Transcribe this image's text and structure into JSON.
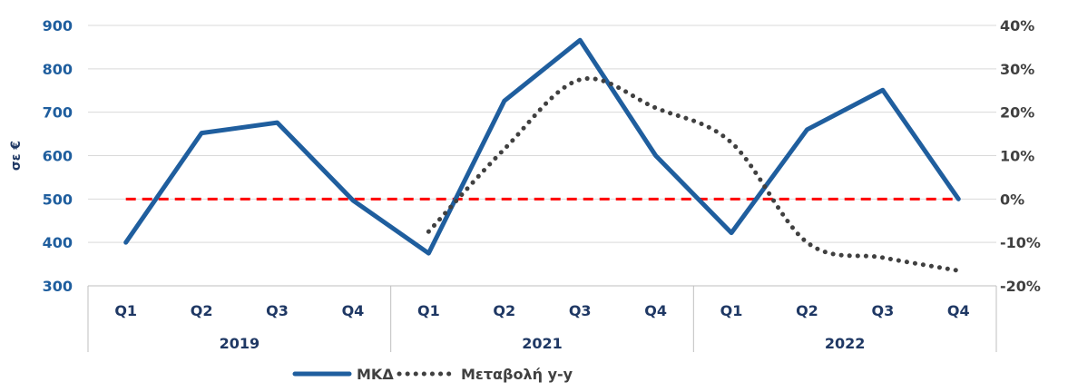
{
  "chart_data": {
    "type": "line",
    "ylabel": "σε €",
    "ylim": [
      300,
      900
    ],
    "yticks": [
      "300",
      "400",
      "500",
      "600",
      "700",
      "800",
      "900"
    ],
    "y2lim": [
      -0.2,
      0.4
    ],
    "y2ticks": [
      "-20%",
      "-10%",
      "0%",
      "10%",
      "20%",
      "30%",
      "40%"
    ],
    "groups": [
      {
        "label": "2019",
        "quarters": [
          "Q1",
          "Q2",
          "Q3",
          "Q4"
        ]
      },
      {
        "label": "2021",
        "quarters": [
          "Q1",
          "Q2",
          "Q3",
          "Q4"
        ]
      },
      {
        "label": "2022",
        "quarters": [
          "Q1",
          "Q2",
          "Q3",
          "Q4"
        ]
      }
    ],
    "series": [
      {
        "name": "ΜΚΔ",
        "axis": "left",
        "style": "solid",
        "color": "#1f5e9e",
        "values": [
          400,
          652,
          676,
          497,
          375,
          726,
          866,
          600,
          422,
          660,
          751,
          500
        ]
      },
      {
        "name": "Μεταβολή y-y",
        "axis": "right",
        "style": "dotted",
        "color": "#404040",
        "values": [
          null,
          null,
          null,
          null,
          -0.075,
          0.115,
          0.275,
          0.21,
          0.13,
          -0.1,
          -0.135,
          -0.165
        ]
      }
    ],
    "reference_line": {
      "axis": "right",
      "value": 0,
      "color": "#ff0000",
      "style": "dashed"
    },
    "grid": "horizontal",
    "legend": "bottom"
  }
}
